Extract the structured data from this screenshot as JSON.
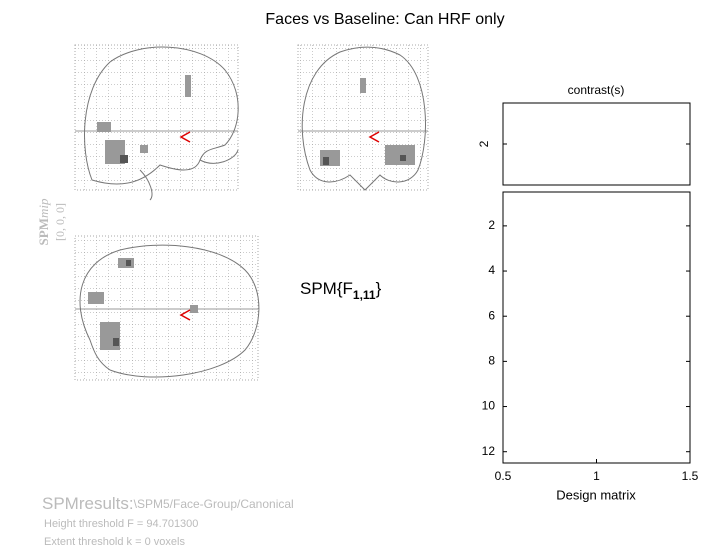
{
  "title": "Faces vs Baseline: Can HRF only",
  "mip_label": {
    "main": "SPM",
    "italic": "mip",
    "coords": "[0, 0, 0]"
  },
  "statistic": {
    "prefix": "SPM{F",
    "subscript": "1,11",
    "suffix": "}"
  },
  "contrast": {
    "title": "contrast(s)",
    "ylim": [
      1.5,
      2.5
    ],
    "yticks": [
      2
    ]
  },
  "design_matrix": {
    "xlabel": "Design matrix",
    "xlim": [
      0.5,
      1.5
    ],
    "xticks": [
      0.5,
      1,
      1.5
    ],
    "ylim": [
      0.5,
      12.5
    ],
    "yticks": [
      2,
      4,
      6,
      8,
      10,
      12
    ]
  },
  "results": {
    "heading": "SPMresults:",
    "path": "\\SPM5/Face-Group/Canonical",
    "height_threshold": "Height threshold F = 94.701300",
    "extent_threshold": "Extent threshold k = 0 voxels"
  }
}
